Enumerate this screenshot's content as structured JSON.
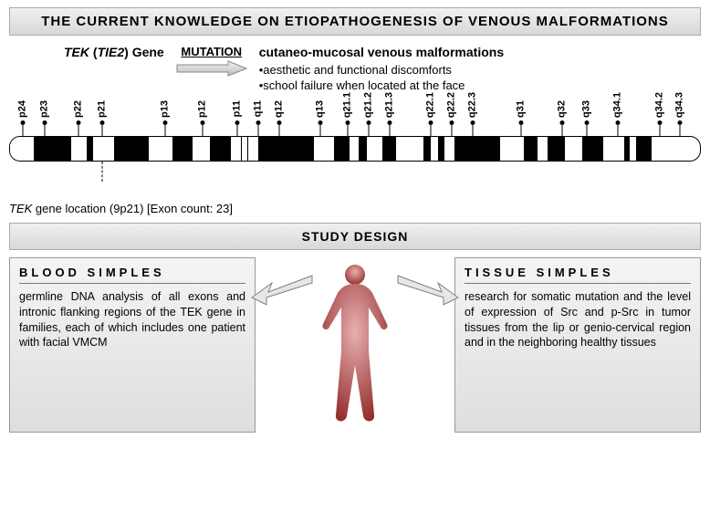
{
  "title_banner": "THE CURRENT KNOWLEDGE ON ETIOPATHOGENESIS OF VENOUS MALFORMATIONS",
  "gene": {
    "tek": "TEK",
    "oparen": "(",
    "tie2": "TIE2",
    "cparen": ")",
    "word": " Gene"
  },
  "mutation_label": "MUTATION",
  "outcome": {
    "line1": "cutaneo-mucosal venous malformations",
    "b1": "•aesthetic and functional discomforts",
    "b2": "•school failure when located at the face"
  },
  "ideogram": {
    "ticks": [
      {
        "label": "p24",
        "x": 2.0
      },
      {
        "label": "p23",
        "x": 5.2
      },
      {
        "label": "p22",
        "x": 10.0
      },
      {
        "label": "p21",
        "x": 13.5
      },
      {
        "label": "p13",
        "x": 22.5
      },
      {
        "label": "p12",
        "x": 28.0
      },
      {
        "label": "p11",
        "x": 33.0
      },
      {
        "label": "q11",
        "x": 36.0
      },
      {
        "label": "q12",
        "x": 39.0
      },
      {
        "label": "q13",
        "x": 45.0
      },
      {
        "label": "q21.1",
        "x": 49.0
      },
      {
        "label": "q21.2",
        "x": 52.0
      },
      {
        "label": "q21.3",
        "x": 55.0
      },
      {
        "label": "q22.1",
        "x": 61.0
      },
      {
        "label": "q22.2",
        "x": 64.0
      },
      {
        "label": "q22.3",
        "x": 67.0
      },
      {
        "label": "q31",
        "x": 74.0
      },
      {
        "label": "q32",
        "x": 80.0
      },
      {
        "label": "q33",
        "x": 83.5
      },
      {
        "label": "q34.1",
        "x": 88.0
      },
      {
        "label": "q34.2",
        "x": 94.0
      },
      {
        "label": "q34.3",
        "x": 97.0
      }
    ],
    "bands": [
      {
        "c": "w",
        "w": 3.4
      },
      {
        "c": "b",
        "w": 5.5
      },
      {
        "c": "w",
        "w": 2.2
      },
      {
        "c": "b",
        "w": 1.0
      },
      {
        "c": "w",
        "w": 3.0
      },
      {
        "c": "b",
        "w": 5.0
      },
      {
        "c": "w",
        "w": 3.4
      },
      {
        "c": "b",
        "w": 3.0
      },
      {
        "c": "w",
        "w": 2.5
      },
      {
        "c": "b",
        "w": 3.0
      },
      {
        "c": "w",
        "w": 1.5
      },
      {
        "c": "cen",
        "w": 1.0
      },
      {
        "c": "w",
        "w": 1.5
      },
      {
        "c": "b",
        "w": 8.0
      },
      {
        "c": "w",
        "w": 3.0
      },
      {
        "c": "b",
        "w": 2.2
      },
      {
        "c": "w",
        "w": 1.3
      },
      {
        "c": "b",
        "w": 1.3
      },
      {
        "c": "w",
        "w": 2.2
      },
      {
        "c": "b",
        "w": 2.0
      },
      {
        "c": "w",
        "w": 4.0
      },
      {
        "c": "b",
        "w": 1.0
      },
      {
        "c": "w",
        "w": 1.0
      },
      {
        "c": "b",
        "w": 1.0
      },
      {
        "c": "w",
        "w": 1.5
      },
      {
        "c": "b",
        "w": 6.5
      },
      {
        "c": "w",
        "w": 3.5
      },
      {
        "c": "b",
        "w": 2.0
      },
      {
        "c": "w",
        "w": 1.5
      },
      {
        "c": "b",
        "w": 2.5
      },
      {
        "c": "w",
        "w": 2.5
      },
      {
        "c": "b",
        "w": 3.0
      },
      {
        "c": "w",
        "w": 3.0
      },
      {
        "c": "b",
        "w": 0.8
      },
      {
        "c": "w",
        "w": 1.0
      },
      {
        "c": "b",
        "w": 2.2
      },
      {
        "c": "w",
        "w": 1.0
      }
    ],
    "tek_dash_x": 13.5,
    "caption_pre": "",
    "caption_it": "TEK",
    "caption_post": " gene location (9p21) [Exon count: 23]"
  },
  "study_banner": "STUDY DESIGN",
  "blood": {
    "title": "BLOOD SIMPLES",
    "body": "germline DNA analysis of all exons and intronic flanking regions of the TEK gene in families, each of which includes one patient with facial VMCM"
  },
  "tissue": {
    "title": "TISSUE SIMPLES",
    "body": "research for somatic mutation and the level of expression of Src and p-Src in tumor tissues from the lip or genio-cervical region and in the neighboring healthy tissues"
  },
  "colors": {
    "body_fill_top": "#d89090",
    "body_fill_bot": "#a03030",
    "arrow_fill": "#e6e6e6",
    "arrow_stroke": "#808080"
  }
}
